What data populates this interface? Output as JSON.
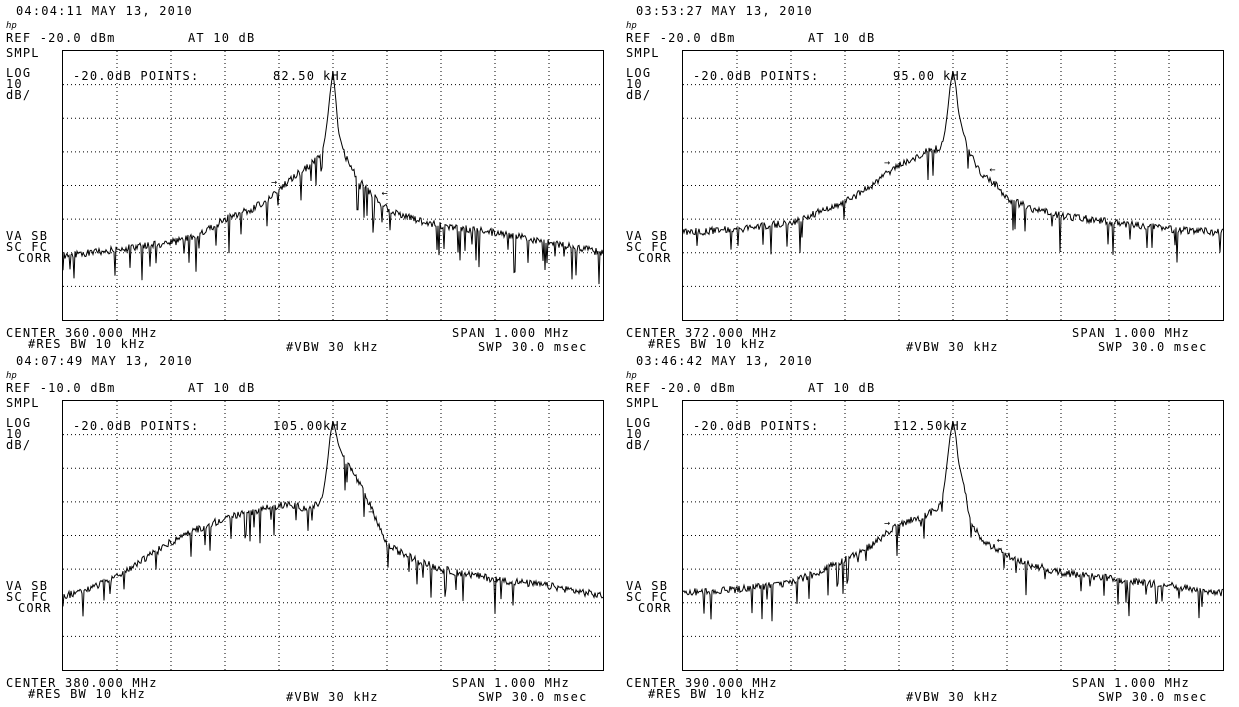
{
  "panels": [
    {
      "timestamp": "04:04:11 MAY 13, 2010",
      "hp_logo": "hp",
      "ref": "REF -20.0 dBm",
      "atten": "AT 10 dB",
      "smpl": "SMPL",
      "log": "LOG",
      "scale_num": "10",
      "scale_unit": "dB/",
      "points_label": "-20.0dB POINTS:",
      "points_value": "82.50",
      "points_unit": "kHz",
      "va_sb": "VA SB",
      "sc_fc": "SC FC",
      "corr": "CORR",
      "center": "CENTER 360.000 MHz",
      "span": "SPAN 1.000 MHz",
      "res_bw": "#RES BW 10 kHz",
      "vbw": "#VBW 30 kHz",
      "swp": "SWP 30.0 msec"
    },
    {
      "timestamp": "03:53:27 MAY 13, 2010",
      "hp_logo": "hp",
      "ref": "REF -20.0 dBm",
      "atten": "AT 10 dB",
      "smpl": "SMPL",
      "log": "LOG",
      "scale_num": "10",
      "scale_unit": "dB/",
      "points_label": "-20.0dB POINTS:",
      "points_value": "95.00",
      "points_unit": "kHz",
      "va_sb": "VA SB",
      "sc_fc": "SC FC",
      "corr": "CORR",
      "center": "CENTER 372.000 MHz",
      "span": "SPAN 1.000 MHz",
      "res_bw": "#RES BW 10 kHz",
      "vbw": "#VBW 30 kHz",
      "swp": "SWP 30.0 msec"
    },
    {
      "timestamp": "04:07:49 MAY 13, 2010",
      "hp_logo": "hp",
      "ref": "REF -10.0 dBm",
      "atten": "AT 10 dB",
      "smpl": "SMPL",
      "log": "LOG",
      "scale_num": "10",
      "scale_unit": "dB/",
      "points_label": "-20.0dB POINTS:",
      "points_value": "105.00",
      "points_unit": "kHz",
      "va_sb": "VA SB",
      "sc_fc": "SC FC",
      "corr": "CORR",
      "center": "CENTER 380.000 MHz",
      "span": "SPAN 1.000 MHz",
      "res_bw": "#RES BW 10 kHz",
      "vbw": "#VBW 30 kHz",
      "swp": "SWP 30.0 msec"
    },
    {
      "timestamp": "03:46:42 MAY 13, 2010",
      "hp_logo": "hp",
      "ref": "REF -20.0 dBm",
      "atten": "AT 10 dB",
      "smpl": "SMPL",
      "log": "LOG",
      "scale_num": "10",
      "scale_unit": "dB/",
      "points_label": "-20.0dB POINTS:",
      "points_value": "112.50",
      "points_unit": "kHz",
      "va_sb": "VA SB",
      "sc_fc": "SC FC",
      "corr": "CORR",
      "center": "CENTER 390.000 MHz",
      "span": "SPAN 1.000 MHz",
      "res_bw": "#RES BW 10 kHz",
      "vbw": "#VBW 30 kHz",
      "swp": "SWP 30.0 msec"
    }
  ],
  "chart_data": [
    {
      "type": "line",
      "center_mhz": 360.0,
      "span_mhz": 1.0,
      "xlim": [
        359.5,
        360.5
      ],
      "ylim": [
        -100,
        -20
      ],
      "ref_dbm": -20.0,
      "scale_db_per_div": 10,
      "grid": true,
      "series": [
        {
          "x": [
            359.5,
            359.6,
            359.7,
            359.75,
            359.8,
            359.85,
            359.88,
            359.9,
            359.93,
            359.95,
            359.97,
            359.98,
            359.985,
            359.99,
            359.995,
            360.0,
            360.005,
            360.01,
            360.02,
            360.03,
            360.05,
            360.08,
            360.1,
            360.15,
            360.2,
            360.3,
            360.4,
            360.5
          ],
          "y": [
            -81,
            -79,
            -77,
            -75,
            -70,
            -67,
            -64,
            -61,
            -57,
            -55,
            -52,
            -50,
            -46,
            -40,
            -32,
            -26,
            -34,
            -44,
            -50,
            -54,
            -59,
            -64,
            -67,
            -70,
            -72,
            -74,
            -77,
            -80
          ]
        }
      ],
      "markers_x": [
        359.9,
        360.0825
      ]
    },
    {
      "type": "line",
      "center_mhz": 372.0,
      "span_mhz": 1.0,
      "xlim": [
        371.5,
        372.5
      ],
      "ylim": [
        -100,
        -20
      ],
      "ref_dbm": -20.0,
      "scale_db_per_div": 10,
      "grid": true,
      "series": [
        {
          "x": [
            371.5,
            371.6,
            371.7,
            371.75,
            371.8,
            371.85,
            371.88,
            371.9,
            371.93,
            371.95,
            371.97,
            371.98,
            371.985,
            371.99,
            371.995,
            372.0,
            372.005,
            372.01,
            372.02,
            372.03,
            372.05,
            372.08,
            372.1,
            372.15,
            372.2,
            372.3,
            372.4,
            372.5
          ],
          "y": [
            -74,
            -73,
            -71,
            -68,
            -65,
            -60,
            -56,
            -54,
            -52,
            -50,
            -49,
            -48,
            -44,
            -38,
            -30,
            -26,
            -30,
            -38,
            -45,
            -50,
            -56,
            -60,
            -64,
            -67,
            -69,
            -71,
            -73,
            -74
          ]
        }
      ],
      "markers_x": [
        371.887,
        372.06
      ]
    },
    {
      "type": "line",
      "center_mhz": 380.0,
      "span_mhz": 1.0,
      "xlim": [
        379.5,
        380.5
      ],
      "ylim": [
        -90,
        -10
      ],
      "ref_dbm": -10.0,
      "scale_db_per_div": 10,
      "grid": true,
      "series": [
        {
          "x": [
            379.5,
            379.55,
            379.6,
            379.65,
            379.7,
            379.75,
            379.8,
            379.85,
            379.9,
            379.93,
            379.95,
            379.97,
            379.98,
            379.985,
            379.99,
            379.995,
            380.0,
            380.005,
            380.01,
            380.02,
            380.04,
            380.06,
            380.08,
            380.1,
            380.15,
            380.2,
            380.3,
            380.4,
            380.5
          ],
          "y": [
            -68,
            -66,
            -62,
            -57,
            -52,
            -48,
            -45,
            -43,
            -41,
            -41,
            -42,
            -41,
            -39,
            -34,
            -28,
            -20,
            -16,
            -19,
            -23,
            -27,
            -32,
            -38,
            -45,
            -53,
            -57,
            -60,
            -63,
            -65,
            -68
          ]
        }
      ],
      "markers_x": [
        380.08
      ]
    },
    {
      "type": "line",
      "center_mhz": 390.0,
      "span_mhz": 1.0,
      "xlim": [
        389.5,
        390.5
      ],
      "ylim": [
        -100,
        -20
      ],
      "ref_dbm": -20.0,
      "scale_db_per_div": 10,
      "grid": true,
      "series": [
        {
          "x": [
            389.5,
            389.6,
            389.7,
            389.75,
            389.8,
            389.85,
            389.88,
            389.9,
            389.93,
            389.95,
            389.97,
            389.98,
            389.985,
            389.99,
            389.995,
            390.0,
            390.005,
            390.01,
            390.02,
            390.03,
            390.05,
            390.08,
            390.1,
            390.15,
            390.2,
            390.3,
            390.4,
            390.5
          ],
          "y": [
            -77,
            -76,
            -74,
            -71,
            -67,
            -63,
            -59,
            -57,
            -55,
            -54,
            -52,
            -49,
            -44,
            -37,
            -30,
            -26,
            -30,
            -38,
            -45,
            -54,
            -61,
            -64,
            -66,
            -69,
            -71,
            -73,
            -75,
            -77
          ]
        }
      ],
      "markers_x": [
        389.887,
        390.0735
      ]
    }
  ]
}
